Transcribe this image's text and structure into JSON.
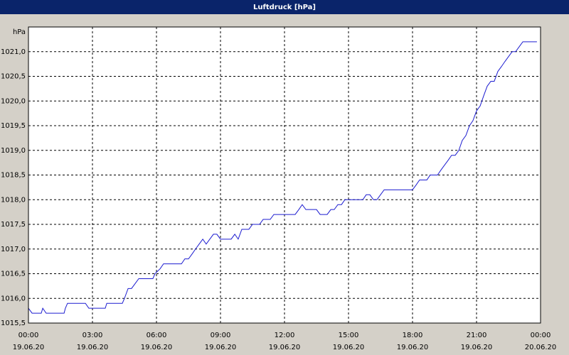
{
  "chart_data": {
    "type": "line",
    "title": "Luftdruck [hPa]",
    "ylabel": "hPa",
    "color": "#1c1cd0",
    "grid": true,
    "xlim": [
      0,
      24
    ],
    "ylim": [
      1015.5,
      1021.5
    ],
    "xticks": [
      {
        "value": 0,
        "label": "00:00\n19.06.20"
      },
      {
        "value": 3,
        "label": "03:00\n19.06.20"
      },
      {
        "value": 6,
        "label": "06:00\n19.06.20"
      },
      {
        "value": 9,
        "label": "09:00\n19.06.20"
      },
      {
        "value": 12,
        "label": "12:00\n19.06.20"
      },
      {
        "value": 15,
        "label": "15:00\n19.06.20"
      },
      {
        "value": 18,
        "label": "18:00\n19.06.20"
      },
      {
        "value": 21,
        "label": "21:00\n19.06.20"
      },
      {
        "value": 24,
        "label": "00:00\n20.06.20"
      }
    ],
    "yticks": [
      {
        "value": 1015.5,
        "label": "1015,5"
      },
      {
        "value": 1016,
        "label": "1016,0"
      },
      {
        "value": 1016.5,
        "label": "1016,5"
      },
      {
        "value": 1017,
        "label": "1017,0"
      },
      {
        "value": 1017.5,
        "label": "1017,5"
      },
      {
        "value": 1018,
        "label": "1018,0"
      },
      {
        "value": 1018.5,
        "label": "1018,5"
      },
      {
        "value": 1019,
        "label": "1019,0"
      },
      {
        "value": 1019.5,
        "label": "1019,5"
      },
      {
        "value": 1020,
        "label": "1020,0"
      },
      {
        "value": 1020.5,
        "label": "1020,5"
      },
      {
        "value": 1021,
        "label": "1021,0"
      }
    ],
    "x": [
      0,
      0.17,
      0.6,
      0.67,
      0.83,
      1.67,
      1.73,
      1.83,
      2.67,
      2.83,
      3.6,
      3.67,
      4.4,
      4.5,
      4.67,
      4.83,
      5.0,
      5.17,
      5.83,
      5.93,
      6.17,
      6.33,
      7.17,
      7.33,
      7.5,
      7.67,
      7.83,
      8.0,
      8.17,
      8.33,
      8.5,
      8.67,
      8.83,
      9.0,
      9.5,
      9.67,
      9.83,
      10.0,
      10.33,
      10.5,
      10.83,
      11.0,
      11.33,
      11.5,
      12.5,
      12.67,
      12.83,
      13.0,
      13.5,
      13.67,
      14.0,
      14.17,
      14.33,
      14.5,
      14.67,
      14.83,
      15.67,
      15.83,
      16.0,
      16.17,
      16.33,
      16.5,
      16.67,
      18.0,
      18.17,
      18.33,
      18.67,
      18.83,
      19.17,
      19.33,
      19.5,
      19.67,
      19.83,
      20.0,
      20.17,
      20.33,
      20.5,
      20.67,
      20.83,
      21.0,
      21.17,
      21.33,
      21.5,
      21.67,
      21.83,
      22.0,
      22.17,
      22.33,
      22.5,
      22.67,
      22.83,
      23.0,
      23.17,
      23.83
    ],
    "values": [
      1015.8,
      1015.7,
      1015.7,
      1015.8,
      1015.7,
      1015.7,
      1015.8,
      1015.9,
      1015.9,
      1015.8,
      1015.8,
      1015.9,
      1015.9,
      1016.0,
      1016.2,
      1016.2,
      1016.3,
      1016.4,
      1016.4,
      1016.5,
      1016.6,
      1016.7,
      1016.7,
      1016.8,
      1016.8,
      1016.9,
      1017.0,
      1017.1,
      1017.2,
      1017.1,
      1017.2,
      1017.3,
      1017.3,
      1017.2,
      1017.2,
      1017.3,
      1017.2,
      1017.4,
      1017.4,
      1017.5,
      1017.5,
      1017.6,
      1017.6,
      1017.7,
      1017.7,
      1017.8,
      1017.9,
      1017.8,
      1017.8,
      1017.7,
      1017.7,
      1017.8,
      1017.8,
      1017.9,
      1017.9,
      1018.0,
      1018.0,
      1018.1,
      1018.1,
      1018.0,
      1018.0,
      1018.1,
      1018.2,
      1018.2,
      1018.3,
      1018.4,
      1018.4,
      1018.5,
      1018.5,
      1018.6,
      1018.7,
      1018.8,
      1018.9,
      1018.9,
      1019.0,
      1019.2,
      1019.3,
      1019.5,
      1019.6,
      1019.8,
      1019.9,
      1020.1,
      1020.3,
      1020.4,
      1020.4,
      1020.6,
      1020.7,
      1020.8,
      1020.9,
      1021.0,
      1021.0,
      1021.1,
      1021.2,
      1021.2
    ]
  }
}
